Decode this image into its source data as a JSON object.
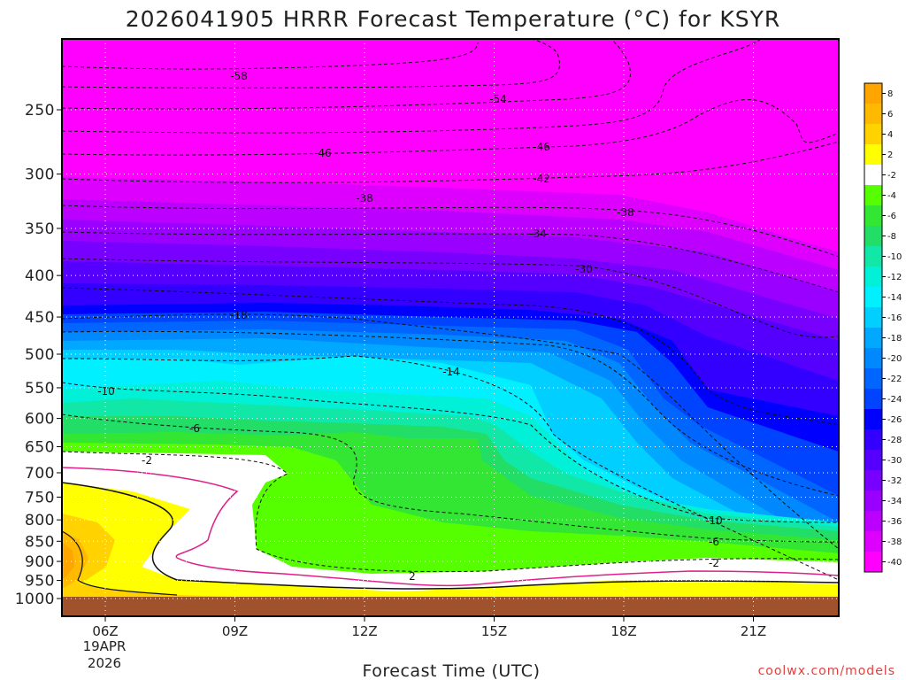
{
  "chart_data": {
    "type": "heatmap",
    "title": "2026041905 HRRR Forecast Temperature (°C) for KSYR",
    "xlabel": "Forecast Time (UTC)",
    "ylabel": "",
    "credit": "coolwx.com/models",
    "y_axis": {
      "scale": "pressure",
      "ticks": [
        "250",
        "300",
        "350",
        "400",
        "450",
        "500",
        "550",
        "600",
        "650",
        "700",
        "750",
        "800",
        "850",
        "900",
        "950",
        "1000"
      ]
    },
    "x_axis": {
      "ticks": [
        "06Z",
        "09Z",
        "12Z",
        "15Z",
        "18Z",
        "21Z"
      ],
      "date_line1": "19APR",
      "date_line2": "2026",
      "range_hours": [
        5,
        23
      ]
    },
    "grid": true,
    "legend": "right",
    "colorbar": [
      {
        "label": "8",
        "color": "#ffa500"
      },
      {
        "label": "6",
        "color": "#ffb900"
      },
      {
        "label": "4",
        "color": "#ffd200"
      },
      {
        "label": "2",
        "color": "#ffff00"
      },
      {
        "label": "-2",
        "color": "#ffffff"
      },
      {
        "label": "-4",
        "color": "#55ff00"
      },
      {
        "label": "-6",
        "color": "#33e633"
      },
      {
        "label": "-8",
        "color": "#22dd66"
      },
      {
        "label": "-10",
        "color": "#11e8a8"
      },
      {
        "label": "-12",
        "color": "#00f0d8"
      },
      {
        "label": "-14",
        "color": "#00f0ff"
      },
      {
        "label": "-16",
        "color": "#00cfff"
      },
      {
        "label": "-18",
        "color": "#00a8ff"
      },
      {
        "label": "-20",
        "color": "#0088ff"
      },
      {
        "label": "-22",
        "color": "#0066ff"
      },
      {
        "label": "-24",
        "color": "#0044ff"
      },
      {
        "label": "-26",
        "color": "#0000ff"
      },
      {
        "label": "-28",
        "color": "#3300ff"
      },
      {
        "label": "-30",
        "color": "#5500ff"
      },
      {
        "label": "-32",
        "color": "#7700ff"
      },
      {
        "label": "-34",
        "color": "#9900ff"
      },
      {
        "label": "-36",
        "color": "#bb00ff"
      },
      {
        "label": "-38",
        "color": "#dd00ff"
      },
      {
        "label": "-40",
        "color": "#ff00ff"
      }
    ],
    "contour_labels": [
      "-58",
      "-54",
      "-46",
      "-46",
      "-42",
      "-38",
      "-38",
      "-34",
      "-30",
      "-18",
      "-14",
      "-10",
      "-10",
      "-6",
      "-6",
      "-2",
      "-2",
      "2"
    ]
  }
}
